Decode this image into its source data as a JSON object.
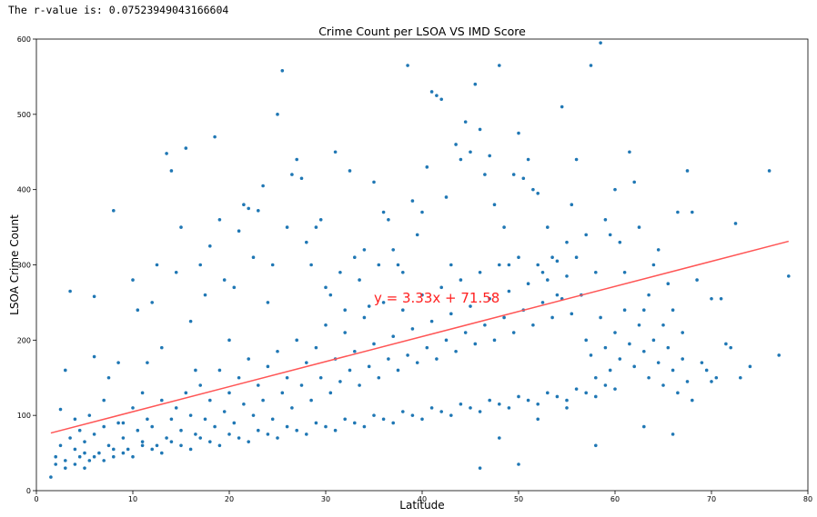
{
  "output": {
    "r_value_text": "The r-value is: 0.07523949043166604"
  },
  "chart_data": {
    "type": "scatter",
    "title": "Crime Count per LSOA VS IMD Score",
    "xlabel": "Latitude",
    "ylabel": "LSOA Crime Count",
    "xlim": [
      0,
      80
    ],
    "ylim": [
      0,
      600
    ],
    "x_ticks": [
      "0",
      "10",
      "20",
      "30",
      "40",
      "50",
      "60",
      "70",
      "80"
    ],
    "y_ticks": [
      "0",
      "100",
      "200",
      "300",
      "400",
      "500",
      "600"
    ],
    "grid": false,
    "marker_color": "#1f77b4",
    "regression": {
      "slope": 3.33,
      "intercept": 71.58,
      "x_range": [
        1.5,
        78
      ],
      "color": "#ff5555",
      "equation_text": "y = 3.33x + 71.58",
      "label_at": [
        35,
        250
      ]
    },
    "points": [
      [
        1.5,
        18
      ],
      [
        2,
        35
      ],
      [
        2.5,
        108
      ],
      [
        3,
        160
      ],
      [
        3.5,
        265
      ],
      [
        4,
        95
      ],
      [
        4.5,
        45
      ],
      [
        5,
        30
      ],
      [
        5.5,
        100
      ],
      [
        6,
        258
      ],
      [
        6,
        178
      ],
      [
        7,
        120
      ],
      [
        7.5,
        150
      ],
      [
        8,
        372
      ],
      [
        8.5,
        170
      ],
      [
        9,
        90
      ],
      [
        10,
        280
      ],
      [
        10.5,
        240
      ],
      [
        11,
        130
      ],
      [
        11.5,
        170
      ],
      [
        12,
        250
      ],
      [
        12.5,
        300
      ],
      [
        13,
        190
      ],
      [
        13.5,
        448
      ],
      [
        14,
        425
      ],
      [
        14.5,
        290
      ],
      [
        15,
        350
      ],
      [
        15.5,
        455
      ],
      [
        16,
        225
      ],
      [
        16.5,
        160
      ],
      [
        17,
        300
      ],
      [
        17.5,
        260
      ],
      [
        18,
        325
      ],
      [
        18.5,
        470
      ],
      [
        19,
        360
      ],
      [
        19.5,
        280
      ],
      [
        20,
        200
      ],
      [
        20.5,
        270
      ],
      [
        21,
        345
      ],
      [
        21.5,
        380
      ],
      [
        22,
        375
      ],
      [
        22.5,
        310
      ],
      [
        23,
        372
      ],
      [
        23.5,
        405
      ],
      [
        24,
        250
      ],
      [
        24.5,
        300
      ],
      [
        25,
        500
      ],
      [
        25.5,
        558
      ],
      [
        26,
        350
      ],
      [
        26.5,
        420
      ],
      [
        27,
        440
      ],
      [
        27.5,
        415
      ],
      [
        28,
        330
      ],
      [
        28.5,
        300
      ],
      [
        29,
        350
      ],
      [
        29.5,
        360
      ],
      [
        30,
        270
      ],
      [
        30.5,
        260
      ],
      [
        31,
        450
      ],
      [
        31.5,
        290
      ],
      [
        32,
        240
      ],
      [
        32.5,
        425
      ],
      [
        33,
        310
      ],
      [
        33.5,
        280
      ],
      [
        34,
        320
      ],
      [
        34.5,
        245
      ],
      [
        35,
        410
      ],
      [
        35.5,
        300
      ],
      [
        36,
        370
      ],
      [
        36.5,
        360
      ],
      [
        37,
        320
      ],
      [
        37.5,
        300
      ],
      [
        38,
        290
      ],
      [
        38.5,
        565
      ],
      [
        39,
        385
      ],
      [
        39.5,
        340
      ],
      [
        40,
        370
      ],
      [
        40.5,
        430
      ],
      [
        41,
        530
      ],
      [
        41.5,
        525
      ],
      [
        42,
        520
      ],
      [
        42.5,
        390
      ],
      [
        43,
        300
      ],
      [
        43.5,
        460
      ],
      [
        44,
        440
      ],
      [
        44.5,
        490
      ],
      [
        45,
        450
      ],
      [
        45.5,
        540
      ],
      [
        46,
        480
      ],
      [
        46.5,
        420
      ],
      [
        47,
        445
      ],
      [
        47.5,
        380
      ],
      [
        48,
        565
      ],
      [
        48.5,
        350
      ],
      [
        49,
        300
      ],
      [
        49.5,
        420
      ],
      [
        50,
        475
      ],
      [
        50.5,
        415
      ],
      [
        51,
        440
      ],
      [
        51.5,
        400
      ],
      [
        52,
        395
      ],
      [
        52.5,
        290
      ],
      [
        53,
        350
      ],
      [
        53.5,
        310
      ],
      [
        54,
        260
      ],
      [
        54.5,
        510
      ],
      [
        55,
        330
      ],
      [
        55.5,
        380
      ],
      [
        56,
        440
      ],
      [
        56.5,
        260
      ],
      [
        57,
        340
      ],
      [
        57.5,
        565
      ],
      [
        58,
        290
      ],
      [
        58.5,
        595
      ],
      [
        59,
        360
      ],
      [
        59.5,
        340
      ],
      [
        60,
        400
      ],
      [
        60.5,
        330
      ],
      [
        61,
        290
      ],
      [
        61.5,
        450
      ],
      [
        62,
        410
      ],
      [
        62.5,
        350
      ],
      [
        63,
        240
      ],
      [
        63.5,
        260
      ],
      [
        64,
        300
      ],
      [
        64.5,
        320
      ],
      [
        65,
        220
      ],
      [
        65.5,
        275
      ],
      [
        66,
        240
      ],
      [
        66.5,
        370
      ],
      [
        67,
        210
      ],
      [
        67.5,
        425
      ],
      [
        68,
        370
      ],
      [
        68.5,
        280
      ],
      [
        69,
        170
      ],
      [
        69.5,
        160
      ],
      [
        70,
        255
      ],
      [
        70.5,
        150
      ],
      [
        71,
        255
      ],
      [
        71.5,
        195
      ],
      [
        72,
        190
      ],
      [
        72.5,
        355
      ],
      [
        74,
        165
      ],
      [
        76,
        425
      ],
      [
        77,
        180
      ],
      [
        78,
        285
      ],
      [
        2,
        45
      ],
      [
        2.5,
        60
      ],
      [
        3,
        30
      ],
      [
        3.5,
        70
      ],
      [
        4,
        55
      ],
      [
        4.5,
        80
      ],
      [
        5,
        65
      ],
      [
        5.5,
        40
      ],
      [
        6,
        75
      ],
      [
        6.5,
        50
      ],
      [
        7,
        85
      ],
      [
        7.5,
        60
      ],
      [
        8,
        45
      ],
      [
        8.5,
        90
      ],
      [
        9,
        70
      ],
      [
        9.5,
        55
      ],
      [
        10,
        110
      ],
      [
        10.5,
        80
      ],
      [
        11,
        65
      ],
      [
        11.5,
        95
      ],
      [
        12,
        85
      ],
      [
        12.5,
        60
      ],
      [
        13,
        120
      ],
      [
        13.5,
        70
      ],
      [
        14,
        95
      ],
      [
        14.5,
        110
      ],
      [
        15,
        80
      ],
      [
        15.5,
        130
      ],
      [
        16,
        100
      ],
      [
        16.5,
        75
      ],
      [
        17,
        140
      ],
      [
        17.5,
        95
      ],
      [
        18,
        120
      ],
      [
        18.5,
        85
      ],
      [
        19,
        160
      ],
      [
        19.5,
        105
      ],
      [
        20,
        130
      ],
      [
        20.5,
        90
      ],
      [
        21,
        150
      ],
      [
        21.5,
        115
      ],
      [
        22,
        175
      ],
      [
        22.5,
        100
      ],
      [
        23,
        140
      ],
      [
        23.5,
        120
      ],
      [
        24,
        165
      ],
      [
        24.5,
        95
      ],
      [
        25,
        185
      ],
      [
        25.5,
        130
      ],
      [
        26,
        150
      ],
      [
        26.5,
        110
      ],
      [
        27,
        200
      ],
      [
        27.5,
        140
      ],
      [
        28,
        170
      ],
      [
        28.5,
        120
      ],
      [
        29,
        190
      ],
      [
        29.5,
        150
      ],
      [
        30,
        220
      ],
      [
        30.5,
        130
      ],
      [
        31,
        175
      ],
      [
        31.5,
        145
      ],
      [
        32,
        210
      ],
      [
        32.5,
        160
      ],
      [
        33,
        185
      ],
      [
        33.5,
        140
      ],
      [
        34,
        230
      ],
      [
        34.5,
        165
      ],
      [
        35,
        195
      ],
      [
        35.5,
        150
      ],
      [
        36,
        250
      ],
      [
        36.5,
        175
      ],
      [
        37,
        205
      ],
      [
        37.5,
        160
      ],
      [
        38,
        240
      ],
      [
        38.5,
        180
      ],
      [
        39,
        215
      ],
      [
        39.5,
        170
      ],
      [
        40,
        260
      ],
      [
        40.5,
        190
      ],
      [
        41,
        225
      ],
      [
        41.5,
        175
      ],
      [
        42,
        270
      ],
      [
        42.5,
        200
      ],
      [
        43,
        235
      ],
      [
        43.5,
        185
      ],
      [
        44,
        280
      ],
      [
        44.5,
        210
      ],
      [
        45,
        245
      ],
      [
        45.5,
        195
      ],
      [
        46,
        290
      ],
      [
        46.5,
        220
      ],
      [
        47,
        255
      ],
      [
        47.5,
        200
      ],
      [
        48,
        300
      ],
      [
        48.5,
        230
      ],
      [
        49,
        265
      ],
      [
        49.5,
        210
      ],
      [
        50,
        310
      ],
      [
        50.5,
        240
      ],
      [
        51,
        275
      ],
      [
        51.5,
        220
      ],
      [
        52,
        300
      ],
      [
        52.5,
        250
      ],
      [
        53,
        280
      ],
      [
        53.5,
        230
      ],
      [
        54,
        305
      ],
      [
        54.5,
        255
      ],
      [
        55,
        285
      ],
      [
        55.5,
        235
      ],
      [
        56,
        310
      ],
      [
        56.5,
        260
      ],
      [
        57,
        200
      ],
      [
        57.5,
        180
      ],
      [
        58,
        150
      ],
      [
        58.5,
        230
      ],
      [
        59,
        190
      ],
      [
        59.5,
        160
      ],
      [
        60,
        210
      ],
      [
        60.5,
        175
      ],
      [
        61,
        240
      ],
      [
        61.5,
        195
      ],
      [
        62,
        165
      ],
      [
        62.5,
        220
      ],
      [
        63,
        185
      ],
      [
        63.5,
        150
      ],
      [
        64,
        200
      ],
      [
        64.5,
        170
      ],
      [
        65,
        140
      ],
      [
        65.5,
        190
      ],
      [
        66,
        160
      ],
      [
        66.5,
        130
      ],
      [
        67,
        175
      ],
      [
        67.5,
        145
      ],
      [
        68,
        120
      ],
      [
        3,
        40
      ],
      [
        4,
        35
      ],
      [
        5,
        50
      ],
      [
        6,
        45
      ],
      [
        7,
        40
      ],
      [
        8,
        55
      ],
      [
        9,
        50
      ],
      [
        10,
        45
      ],
      [
        11,
        60
      ],
      [
        12,
        55
      ],
      [
        13,
        50
      ],
      [
        14,
        65
      ],
      [
        15,
        60
      ],
      [
        16,
        55
      ],
      [
        17,
        70
      ],
      [
        18,
        65
      ],
      [
        19,
        60
      ],
      [
        20,
        75
      ],
      [
        21,
        70
      ],
      [
        22,
        65
      ],
      [
        23,
        80
      ],
      [
        24,
        75
      ],
      [
        25,
        70
      ],
      [
        26,
        85
      ],
      [
        27,
        80
      ],
      [
        28,
        75
      ],
      [
        29,
        90
      ],
      [
        30,
        85
      ],
      [
        31,
        80
      ],
      [
        32,
        95
      ],
      [
        33,
        90
      ],
      [
        34,
        85
      ],
      [
        35,
        100
      ],
      [
        36,
        95
      ],
      [
        37,
        90
      ],
      [
        38,
        105
      ],
      [
        39,
        100
      ],
      [
        40,
        95
      ],
      [
        41,
        110
      ],
      [
        42,
        105
      ],
      [
        43,
        100
      ],
      [
        44,
        115
      ],
      [
        45,
        110
      ],
      [
        46,
        105
      ],
      [
        47,
        120
      ],
      [
        48,
        115
      ],
      [
        49,
        110
      ],
      [
        50,
        125
      ],
      [
        51,
        120
      ],
      [
        52,
        115
      ],
      [
        53,
        130
      ],
      [
        54,
        125
      ],
      [
        55,
        120
      ],
      [
        56,
        135
      ],
      [
        57,
        130
      ],
      [
        58,
        125
      ],
      [
        59,
        140
      ],
      [
        60,
        135
      ],
      [
        46,
        30
      ],
      [
        48,
        70
      ],
      [
        50,
        35
      ],
      [
        52,
        95
      ],
      [
        55,
        110
      ],
      [
        58,
        60
      ],
      [
        63,
        85
      ],
      [
        66,
        75
      ],
      [
        70,
        145
      ],
      [
        73,
        150
      ]
    ]
  }
}
